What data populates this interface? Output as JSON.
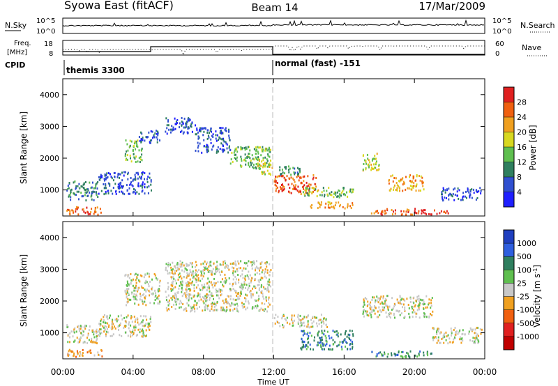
{
  "header": {
    "station": "Syowa East (fitACF)",
    "beam": "Beam 14",
    "date": "17/Mar/2009"
  },
  "noise_panel": {
    "left_label": "N.Sky",
    "right_label": "N.Search",
    "left_ticks": [
      "10^5",
      "10^0"
    ],
    "right_ticks": [
      "10^5",
      "10^0"
    ]
  },
  "freq_panel": {
    "left_label_line1": "Freq.",
    "left_label_line2": "[MHz]",
    "left_ticks": [
      "18",
      "8"
    ],
    "right_label": "Nave",
    "right_ticks": [
      "60",
      "0"
    ]
  },
  "cpid_panel": {
    "label": "CPID",
    "segments": [
      {
        "text": "themis 3300",
        "start_hour": 0
      },
      {
        "text": "normal (fast) -151",
        "start_hour": 12
      }
    ]
  },
  "chart_data": [
    {
      "type": "heatmap",
      "panel": "power",
      "ylabel": "Slant Range [km]",
      "ylim": [
        180,
        4500
      ],
      "yticks": [
        "1000",
        "2000",
        "3000",
        "4000"
      ],
      "xlim_hours": [
        0,
        24
      ],
      "colorbar": {
        "label": "Power [dB]",
        "ticks": [
          "4",
          "8",
          "12",
          "16",
          "20",
          "24",
          "28"
        ],
        "colors": [
          "#1f1fff",
          "#3050d0",
          "#2f7f5f",
          "#5fbf4f",
          "#d8d820",
          "#f0a020",
          "#f06010",
          "#e02020"
        ]
      },
      "echo_regions": [
        {
          "t0": 0.2,
          "t1": 2.0,
          "r0": 700,
          "r1": 1300,
          "level": 2
        },
        {
          "t0": 0.2,
          "t1": 2.2,
          "r0": 250,
          "r1": 500,
          "level": 6
        },
        {
          "t0": 2.0,
          "t1": 5.0,
          "r0": 900,
          "r1": 1600,
          "level": 1
        },
        {
          "t0": 3.5,
          "t1": 4.5,
          "r0": 1900,
          "r1": 2600,
          "level": 3
        },
        {
          "t0": 4.3,
          "t1": 5.5,
          "r0": 2500,
          "r1": 2900,
          "level": 1
        },
        {
          "t0": 5.8,
          "t1": 7.5,
          "r0": 2800,
          "r1": 3300,
          "level": 1
        },
        {
          "t0": 7.5,
          "t1": 9.5,
          "r0": 2200,
          "r1": 3000,
          "level": 1
        },
        {
          "t0": 9.5,
          "t1": 11.8,
          "r0": 1700,
          "r1": 2400,
          "level": 3
        },
        {
          "t0": 11.0,
          "t1": 11.9,
          "r0": 1500,
          "r1": 2000,
          "level": 4
        },
        {
          "t0": 12.0,
          "t1": 14.5,
          "r0": 900,
          "r1": 1500,
          "level": 6
        },
        {
          "t0": 12.2,
          "t1": 13.5,
          "r0": 1500,
          "r1": 1800,
          "level": 2
        },
        {
          "t0": 13.5,
          "t1": 16.5,
          "r0": 800,
          "r1": 1100,
          "level": 3
        },
        {
          "t0": 14.0,
          "t1": 16.5,
          "r0": 450,
          "r1": 650,
          "level": 5
        },
        {
          "t0": 17.0,
          "t1": 18.0,
          "r0": 1600,
          "r1": 2200,
          "level": 4
        },
        {
          "t0": 18.5,
          "t1": 20.5,
          "r0": 1000,
          "r1": 1500,
          "level": 5
        },
        {
          "t0": 17.5,
          "t1": 20.0,
          "r0": 250,
          "r1": 450,
          "level": 6
        },
        {
          "t0": 21.5,
          "t1": 23.8,
          "r0": 700,
          "r1": 1100,
          "level": 1
        },
        {
          "t0": 20.0,
          "t1": 22.0,
          "r0": 250,
          "r1": 400,
          "level": 7
        }
      ]
    },
    {
      "type": "heatmap",
      "panel": "velocity",
      "ylabel": "Slant Range [km]",
      "xlabel": "Time UT",
      "ylim": [
        180,
        4500
      ],
      "yticks": [
        "1000",
        "2000",
        "3000",
        "4000"
      ],
      "xlim_hours": [
        0,
        24
      ],
      "xticks": [
        "00:00",
        "04:00",
        "08:00",
        "12:00",
        "16:00",
        "20:00",
        "00:00"
      ],
      "colorbar": {
        "label": "Velocity [m s^-1]",
        "ticks": [
          "1000",
          "500",
          "100",
          "25",
          "-25",
          "-100",
          "-500",
          "-1000"
        ],
        "colors": [
          "#1f3fbf",
          "#2f5fdf",
          "#2f7f5f",
          "#5fbf4f",
          "#c8c8c8",
          "#f0a020",
          "#f06010",
          "#e02020",
          "#c00000"
        ]
      },
      "echo_regions": [
        {
          "t0": 0.2,
          "t1": 2.0,
          "r0": 700,
          "r1": 1300,
          "level": 4
        },
        {
          "t0": 0.2,
          "t1": 2.2,
          "r0": 250,
          "r1": 500,
          "level": 5
        },
        {
          "t0": 2.0,
          "t1": 5.0,
          "r0": 900,
          "r1": 1600,
          "level": 4
        },
        {
          "t0": 3.5,
          "t1": 5.5,
          "r0": 1900,
          "r1": 2900,
          "level": 4
        },
        {
          "t0": 5.8,
          "t1": 11.8,
          "r0": 1700,
          "r1": 3300,
          "level": 4
        },
        {
          "t0": 12.0,
          "t1": 15.0,
          "r0": 1200,
          "r1": 1600,
          "level": 4
        },
        {
          "t0": 13.5,
          "t1": 16.5,
          "r0": 500,
          "r1": 1100,
          "level": 2
        },
        {
          "t0": 17.0,
          "t1": 21.0,
          "r0": 1500,
          "r1": 2200,
          "level": 4
        },
        {
          "t0": 17.5,
          "t1": 21.0,
          "r0": 250,
          "r1": 450,
          "level": 2
        },
        {
          "t0": 21.0,
          "t1": 23.8,
          "r0": 700,
          "r1": 1200,
          "level": 4
        }
      ]
    }
  ]
}
